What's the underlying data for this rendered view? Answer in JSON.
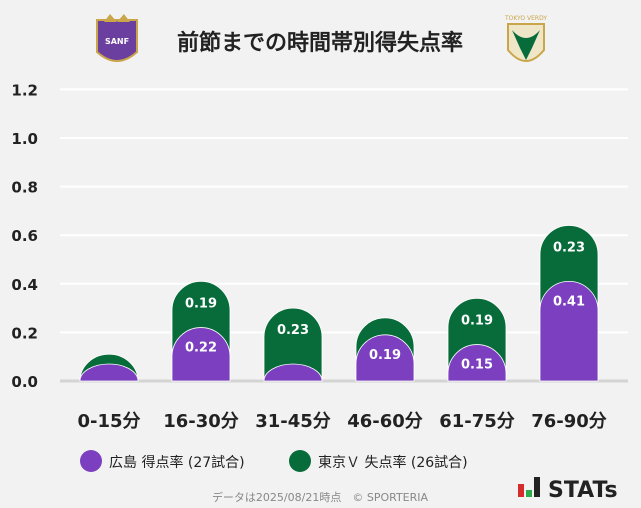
{
  "chart_data": {
    "type": "bar",
    "stacked": true,
    "title": "前節までの時間帯別得失点率",
    "categories": [
      "0-15分",
      "16-30分",
      "31-45分",
      "46-60分",
      "61-75分",
      "76-90分"
    ],
    "series": [
      {
        "name": "広島 得点率 (27試合)",
        "color": "#7b3fbf",
        "values": [
          0.07,
          0.22,
          0.07,
          0.19,
          0.15,
          0.41
        ],
        "labels": [
          "",
          "0.22",
          "",
          "0.19",
          "0.15",
          "0.41"
        ]
      },
      {
        "name": "東京Ｖ 失点率 (26試合)",
        "color": "#076b3a",
        "values": [
          0.04,
          0.19,
          0.23,
          0.07,
          0.19,
          0.23
        ],
        "labels": [
          "",
          "0.19",
          "0.23",
          "",
          "0.19",
          "0.23"
        ]
      }
    ],
    "yticks": [
      "0.0",
      "0.2",
      "0.4",
      "0.6",
      "0.8",
      "1.0",
      "1.2"
    ],
    "ylim": [
      0,
      1.2
    ],
    "grid": true,
    "legend": "bottom"
  },
  "logos": {
    "home": "SANFRECCE",
    "away": "TOKYO VERDY"
  },
  "footer": {
    "note": "データは2025/08/21時点　© SPORTERIA",
    "brand": "STATs"
  }
}
